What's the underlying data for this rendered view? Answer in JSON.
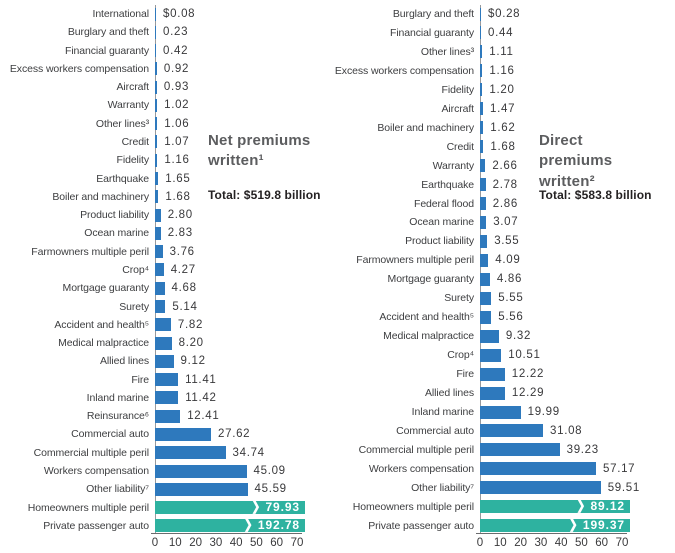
{
  "page": {
    "background": "#ffffff"
  },
  "chart_data": [
    {
      "type": "bar",
      "orientation": "horizontal",
      "title": "Net premiums written¹",
      "total": "Total: $519.8 billion",
      "xlabel": "",
      "ylabel": "",
      "xlim": [
        0,
        70
      ],
      "x_ticks": [
        0,
        10,
        20,
        30,
        40,
        50,
        60,
        70
      ],
      "grid": false,
      "legend": "none",
      "bar_color": "#2e79bd",
      "highlight_color": "#2eb2a0",
      "rows": [
        {
          "label": "International",
          "value": 0.08,
          "display": "$0.08"
        },
        {
          "label": "Burglary and theft",
          "value": 0.23,
          "display": "0.23"
        },
        {
          "label": "Financial guaranty",
          "value": 0.42,
          "display": "0.42"
        },
        {
          "label": "Excess workers compensation",
          "value": 0.92,
          "display": "0.92"
        },
        {
          "label": "Aircraft",
          "value": 0.93,
          "display": "0.93"
        },
        {
          "label": "Warranty",
          "value": 1.02,
          "display": "1.02"
        },
        {
          "label": "Other lines³",
          "value": 1.06,
          "display": "1.06"
        },
        {
          "label": "Credit",
          "value": 1.07,
          "display": "1.07"
        },
        {
          "label": "Fidelity",
          "value": 1.16,
          "display": "1.16"
        },
        {
          "label": "Earthquake",
          "value": 1.65,
          "display": "1.65"
        },
        {
          "label": "Boiler and machinery",
          "value": 1.68,
          "display": "1.68"
        },
        {
          "label": "Product liability",
          "value": 2.8,
          "display": "2.80"
        },
        {
          "label": "Ocean marine",
          "value": 2.83,
          "display": "2.83"
        },
        {
          "label": "Farmowners multiple peril",
          "value": 3.76,
          "display": "3.76"
        },
        {
          "label": "Crop⁴",
          "value": 4.27,
          "display": "4.27"
        },
        {
          "label": "Mortgage guaranty",
          "value": 4.68,
          "display": "4.68"
        },
        {
          "label": "Surety",
          "value": 5.14,
          "display": "5.14"
        },
        {
          "label": "Accident and health⁵",
          "value": 7.82,
          "display": "7.82"
        },
        {
          "label": "Medical malpractice",
          "value": 8.2,
          "display": "8.20"
        },
        {
          "label": "Allied lines",
          "value": 9.12,
          "display": "9.12"
        },
        {
          "label": "Fire",
          "value": 11.41,
          "display": "11.41"
        },
        {
          "label": "Inland marine",
          "value": 11.42,
          "display": "11.42"
        },
        {
          "label": "Reinsurance⁶",
          "value": 12.41,
          "display": "12.41"
        },
        {
          "label": "Commercial auto",
          "value": 27.62,
          "display": "27.62"
        },
        {
          "label": "Commercial multiple peril",
          "value": 34.74,
          "display": "34.74"
        },
        {
          "label": "Workers compensation",
          "value": 45.09,
          "display": "45.09"
        },
        {
          "label": "Other liability⁷",
          "value": 45.59,
          "display": "45.59"
        },
        {
          "label": "Homeowners multiple peril",
          "value": 79.93,
          "display": "79.93",
          "highlight": true
        },
        {
          "label": "Private passenger auto",
          "value": 192.78,
          "display": "192.78",
          "highlight": true
        }
      ]
    },
    {
      "type": "bar",
      "orientation": "horizontal",
      "title": "Direct premiums written²",
      "total": "Total: $583.8 billion",
      "xlabel": "",
      "ylabel": "",
      "xlim": [
        0,
        70
      ],
      "x_ticks": [
        0,
        10,
        20,
        30,
        40,
        50,
        60,
        70
      ],
      "grid": false,
      "legend": "none",
      "bar_color": "#2e79bd",
      "highlight_color": "#2eb2a0",
      "rows": [
        {
          "label": "Burglary and theft",
          "value": 0.28,
          "display": "$0.28"
        },
        {
          "label": "Financial guaranty",
          "value": 0.44,
          "display": "0.44"
        },
        {
          "label": "Other lines³",
          "value": 1.11,
          "display": "1.11"
        },
        {
          "label": "Excess workers compensation",
          "value": 1.16,
          "display": "1.16"
        },
        {
          "label": "Fidelity",
          "value": 1.2,
          "display": "1.20"
        },
        {
          "label": "Aircraft",
          "value": 1.47,
          "display": "1.47"
        },
        {
          "label": "Boiler and machinery",
          "value": 1.62,
          "display": "1.62"
        },
        {
          "label": "Credit",
          "value": 1.68,
          "display": "1.68"
        },
        {
          "label": "Warranty",
          "value": 2.66,
          "display": "2.66"
        },
        {
          "label": "Earthquake",
          "value": 2.78,
          "display": "2.78"
        },
        {
          "label": "Federal flood",
          "value": 2.86,
          "display": "2.86"
        },
        {
          "label": "Ocean marine",
          "value": 3.07,
          "display": "3.07"
        },
        {
          "label": "Product liability",
          "value": 3.55,
          "display": "3.55"
        },
        {
          "label": "Farmowners multiple peril",
          "value": 4.09,
          "display": "4.09"
        },
        {
          "label": "Mortgage guaranty",
          "value": 4.86,
          "display": "4.86"
        },
        {
          "label": "Surety",
          "value": 5.55,
          "display": "5.55"
        },
        {
          "label": "Accident and health⁵",
          "value": 5.56,
          "display": "5.56"
        },
        {
          "label": "Medical malpractice",
          "value": 9.32,
          "display": "9.32"
        },
        {
          "label": "Crop⁴",
          "value": 10.51,
          "display": "10.51"
        },
        {
          "label": "Fire",
          "value": 12.22,
          "display": "12.22"
        },
        {
          "label": "Allied lines",
          "value": 12.29,
          "display": "12.29"
        },
        {
          "label": "Inland marine",
          "value": 19.99,
          "display": "19.99"
        },
        {
          "label": "Commercial auto",
          "value": 31.08,
          "display": "31.08"
        },
        {
          "label": "Commercial multiple peril",
          "value": 39.23,
          "display": "39.23"
        },
        {
          "label": "Workers compensation",
          "value": 57.17,
          "display": "57.17"
        },
        {
          "label": "Other liability⁷",
          "value": 59.51,
          "display": "59.51"
        },
        {
          "label": "Homeowners multiple peril",
          "value": 89.12,
          "display": "89.12",
          "highlight": true
        },
        {
          "label": "Private passenger auto",
          "value": 199.37,
          "display": "199.37",
          "highlight": true
        }
      ]
    }
  ]
}
